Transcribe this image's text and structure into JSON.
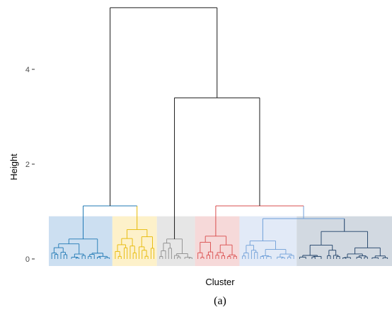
{
  "chart_data": {
    "type": "dendrogram",
    "ylabel": "Height",
    "xlabel": "Cluster",
    "ylim": [
      0,
      5.4
    ],
    "yticks": [
      0,
      2,
      4
    ],
    "grid": false,
    "caption": "(a)",
    "clusters": [
      {
        "color": "#1f78b4",
        "band_color": "#c6dbef",
        "leaf_count": 20
      },
      {
        "color": "#e6b800",
        "band_color": "#fdf0c4",
        "leaf_count": 14
      },
      {
        "color": "#8c8c8c",
        "band_color": "#e3e3e3",
        "leaf_count": 12
      },
      {
        "color": "#d94c4c",
        "band_color": "#f5d5d5",
        "leaf_count": 14
      },
      {
        "color": "#6f9fd8",
        "band_color": "#dfe8f6",
        "leaf_count": 18
      },
      {
        "color": "#1d3f66",
        "band_color": "#cdd5de",
        "leaf_count": 30
      }
    ],
    "merges": [
      {
        "between": [
          0,
          1
        ],
        "height": 1.12
      },
      {
        "between": [
          4,
          5
        ],
        "height": 0.85
      },
      {
        "between": [
          3,
          "4-5"
        ],
        "height": 1.12
      },
      {
        "between": [
          2,
          "3-5"
        ],
        "height": 3.4
      },
      {
        "between": [
          "0-1",
          "2-5"
        ],
        "height": 5.3
      }
    ],
    "cut_height": 0.9,
    "series_colors": {
      "upper_tree": "#1a1a1a"
    }
  }
}
